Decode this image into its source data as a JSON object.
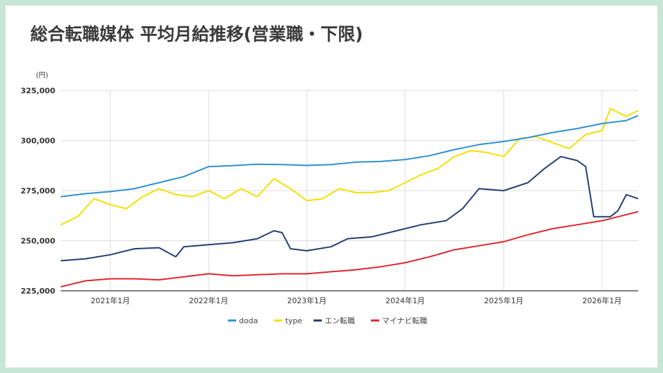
{
  "title": "総合転職媒体 平均月給推移(営業職・下限)",
  "chart_data": {
    "type": "line",
    "title": "総合転職媒体 平均月給推移(営業職・下限)",
    "ylabel": "(円)",
    "ylim": [
      225000,
      325000
    ],
    "yticks": [
      {
        "value": 325000,
        "label": "325,000"
      },
      {
        "value": 300000,
        "label": "300,000"
      },
      {
        "value": 275000,
        "label": "275,000"
      },
      {
        "value": 250000,
        "label": "250,000"
      },
      {
        "value": 225000,
        "label": "225,000"
      }
    ],
    "xlim": [
      "2020-07-01",
      "2026-05-15"
    ],
    "xticks": [
      {
        "date": "2021-01-01",
        "label": "2021年1月"
      },
      {
        "date": "2022-01-01",
        "label": "2022年1月"
      },
      {
        "date": "2023-01-01",
        "label": "2023年1月"
      },
      {
        "date": "2024-01-01",
        "label": "2024年1月"
      },
      {
        "date": "2025-01-01",
        "label": "2025年1月"
      },
      {
        "date": "2026-01-01",
        "label": "2026年1月"
      }
    ],
    "grid": true,
    "legend_position": "bottom",
    "series": [
      {
        "name": "doda",
        "color": "#2e8fcf",
        "points": [
          [
            "2020-07-01",
            272000
          ],
          [
            "2020-10-01",
            273500
          ],
          [
            "2021-01-01",
            274500
          ],
          [
            "2021-04-01",
            276000
          ],
          [
            "2021-07-01",
            279000
          ],
          [
            "2021-10-01",
            282000
          ],
          [
            "2022-01-01",
            287000
          ],
          [
            "2022-04-01",
            287500
          ],
          [
            "2022-07-01",
            288200
          ],
          [
            "2022-10-01",
            288000
          ],
          [
            "2023-01-01",
            287600
          ],
          [
            "2023-04-01",
            288000
          ],
          [
            "2023-07-01",
            289200
          ],
          [
            "2023-10-01",
            289600
          ],
          [
            "2024-01-01",
            290500
          ],
          [
            "2024-04-01",
            292500
          ],
          [
            "2024-07-01",
            295500
          ],
          [
            "2024-10-01",
            298000
          ],
          [
            "2025-01-01",
            299500
          ],
          [
            "2025-04-01",
            301500
          ],
          [
            "2025-07-01",
            304000
          ],
          [
            "2025-10-01",
            306000
          ],
          [
            "2026-01-01",
            308500
          ],
          [
            "2026-04-01",
            310000
          ],
          [
            "2026-05-15",
            312500
          ]
        ]
      },
      {
        "name": "type",
        "color": "#f5e000",
        "points": [
          [
            "2020-07-01",
            258000
          ],
          [
            "2020-09-01",
            262000
          ],
          [
            "2020-11-01",
            271000
          ],
          [
            "2021-01-01",
            268000
          ],
          [
            "2021-03-01",
            266000
          ],
          [
            "2021-05-01",
            272000
          ],
          [
            "2021-07-01",
            276000
          ],
          [
            "2021-09-01",
            273000
          ],
          [
            "2021-11-01",
            272000
          ],
          [
            "2022-01-01",
            275000
          ],
          [
            "2022-03-01",
            271000
          ],
          [
            "2022-05-01",
            276000
          ],
          [
            "2022-07-01",
            272000
          ],
          [
            "2022-09-01",
            281000
          ],
          [
            "2022-11-01",
            276000
          ],
          [
            "2023-01-01",
            270000
          ],
          [
            "2023-03-01",
            271000
          ],
          [
            "2023-05-01",
            276000
          ],
          [
            "2023-07-01",
            274000
          ],
          [
            "2023-09-01",
            274000
          ],
          [
            "2023-11-01",
            275000
          ],
          [
            "2024-01-01",
            279000
          ],
          [
            "2024-03-01",
            283000
          ],
          [
            "2024-05-01",
            286000
          ],
          [
            "2024-07-01",
            292000
          ],
          [
            "2024-09-01",
            295000
          ],
          [
            "2024-11-01",
            294000
          ],
          [
            "2025-01-01",
            292000
          ],
          [
            "2025-03-01",
            301000
          ],
          [
            "2025-05-01",
            302000
          ],
          [
            "2025-07-01",
            299000
          ],
          [
            "2025-09-01",
            296000
          ],
          [
            "2025-11-01",
            303000
          ],
          [
            "2026-01-01",
            305000
          ],
          [
            "2026-02-01",
            316000
          ],
          [
            "2026-04-01",
            312000
          ],
          [
            "2026-05-15",
            315000
          ]
        ]
      },
      {
        "name": "エン転職",
        "color": "#1f3d73",
        "points": [
          [
            "2020-07-01",
            240000
          ],
          [
            "2020-10-01",
            241000
          ],
          [
            "2021-01-01",
            243000
          ],
          [
            "2021-04-01",
            246000
          ],
          [
            "2021-07-01",
            246500
          ],
          [
            "2021-09-01",
            242000
          ],
          [
            "2021-10-01",
            247000
          ],
          [
            "2022-01-01",
            248000
          ],
          [
            "2022-04-01",
            249000
          ],
          [
            "2022-07-01",
            251000
          ],
          [
            "2022-09-01",
            255000
          ],
          [
            "2022-10-01",
            254000
          ],
          [
            "2022-11-01",
            246000
          ],
          [
            "2023-01-01",
            245000
          ],
          [
            "2023-04-01",
            247000
          ],
          [
            "2023-06-01",
            251000
          ],
          [
            "2023-09-01",
            252000
          ],
          [
            "2023-12-01",
            255000
          ],
          [
            "2024-03-01",
            258000
          ],
          [
            "2024-06-01",
            260000
          ],
          [
            "2024-08-01",
            266000
          ],
          [
            "2024-10-01",
            276000
          ],
          [
            "2025-01-01",
            275000
          ],
          [
            "2025-04-01",
            279000
          ],
          [
            "2025-06-01",
            286000
          ],
          [
            "2025-08-01",
            292000
          ],
          [
            "2025-10-01",
            290000
          ],
          [
            "2025-11-01",
            287000
          ],
          [
            "2025-12-01",
            262000
          ],
          [
            "2026-02-01",
            262000
          ],
          [
            "2026-03-01",
            265000
          ],
          [
            "2026-04-01",
            273000
          ],
          [
            "2026-05-15",
            271000
          ]
        ]
      },
      {
        "name": "マイナビ転職",
        "color": "#e2232a",
        "points": [
          [
            "2020-07-01",
            227000
          ],
          [
            "2020-10-01",
            230000
          ],
          [
            "2021-01-01",
            231000
          ],
          [
            "2021-04-01",
            231000
          ],
          [
            "2021-07-01",
            230500
          ],
          [
            "2021-10-01",
            232000
          ],
          [
            "2022-01-01",
            233500
          ],
          [
            "2022-04-01",
            232500
          ],
          [
            "2022-07-01",
            233000
          ],
          [
            "2022-10-01",
            233500
          ],
          [
            "2023-01-01",
            233500
          ],
          [
            "2023-04-01",
            234500
          ],
          [
            "2023-07-01",
            235500
          ],
          [
            "2023-10-01",
            237000
          ],
          [
            "2024-01-01",
            239000
          ],
          [
            "2024-04-01",
            242000
          ],
          [
            "2024-07-01",
            245500
          ],
          [
            "2024-10-01",
            247500
          ],
          [
            "2025-01-01",
            249500
          ],
          [
            "2025-04-01",
            253000
          ],
          [
            "2025-07-01",
            256000
          ],
          [
            "2025-10-01",
            258000
          ],
          [
            "2026-01-01",
            260000
          ],
          [
            "2026-04-01",
            263000
          ],
          [
            "2026-05-15",
            264500
          ]
        ]
      }
    ]
  }
}
